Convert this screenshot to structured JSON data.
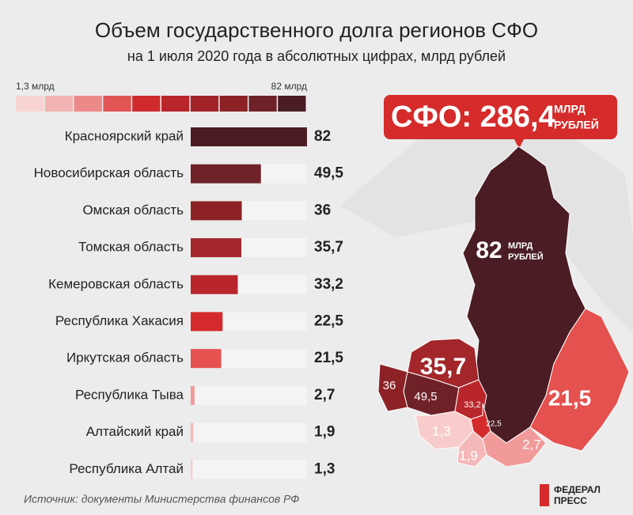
{
  "chart_data": {
    "type": "bar",
    "title": "Объем государственного долга регионов СФО",
    "subtitle": "на 1 июля 2020 года в абсолютных цифрах, млрд рублей",
    "categories": [
      "Красноярский край",
      "Новосибирская область",
      "Омская область",
      "Томская область",
      "Кемеровская область",
      "Республика Хакасия",
      "Иркутская область",
      "Республика Тыва",
      "Алтайский край",
      "Республика Алтай"
    ],
    "values": [
      82,
      49.5,
      36,
      35.7,
      33.2,
      22.5,
      21.5,
      2.7,
      1.9,
      1.3
    ],
    "value_labels": [
      "82",
      "49,5",
      "36",
      "35,7",
      "33,2",
      "22,5",
      "21,5",
      "2,7",
      "1,9",
      "1,3"
    ],
    "colors": [
      "#4a1c24",
      "#6e2228",
      "#8c2226",
      "#a2262a",
      "#b8262b",
      "#d42a2b",
      "#e5514f",
      "#f09a9a",
      "#f5b8b8",
      "#f8cccc"
    ],
    "xlim": [
      0,
      82
    ],
    "scale": {
      "min_label": "1,3 млрд",
      "max_label": "82 млрд",
      "colors": [
        "#f8d3d3",
        "#f2b3b3",
        "#ec8a8a",
        "#e25555",
        "#d02a2d",
        "#b8262b",
        "#a22428",
        "#8c2226",
        "#6e2228",
        "#4a1c24"
      ]
    },
    "total": "СФО: 286,4",
    "unit": [
      "МЛРД",
      "РУБЛЕЙ"
    ],
    "source": "Источник: документы Министерства финансов РФ",
    "logo": [
      "ФЕДЕРАЛ",
      "ПРЕСС"
    ]
  }
}
